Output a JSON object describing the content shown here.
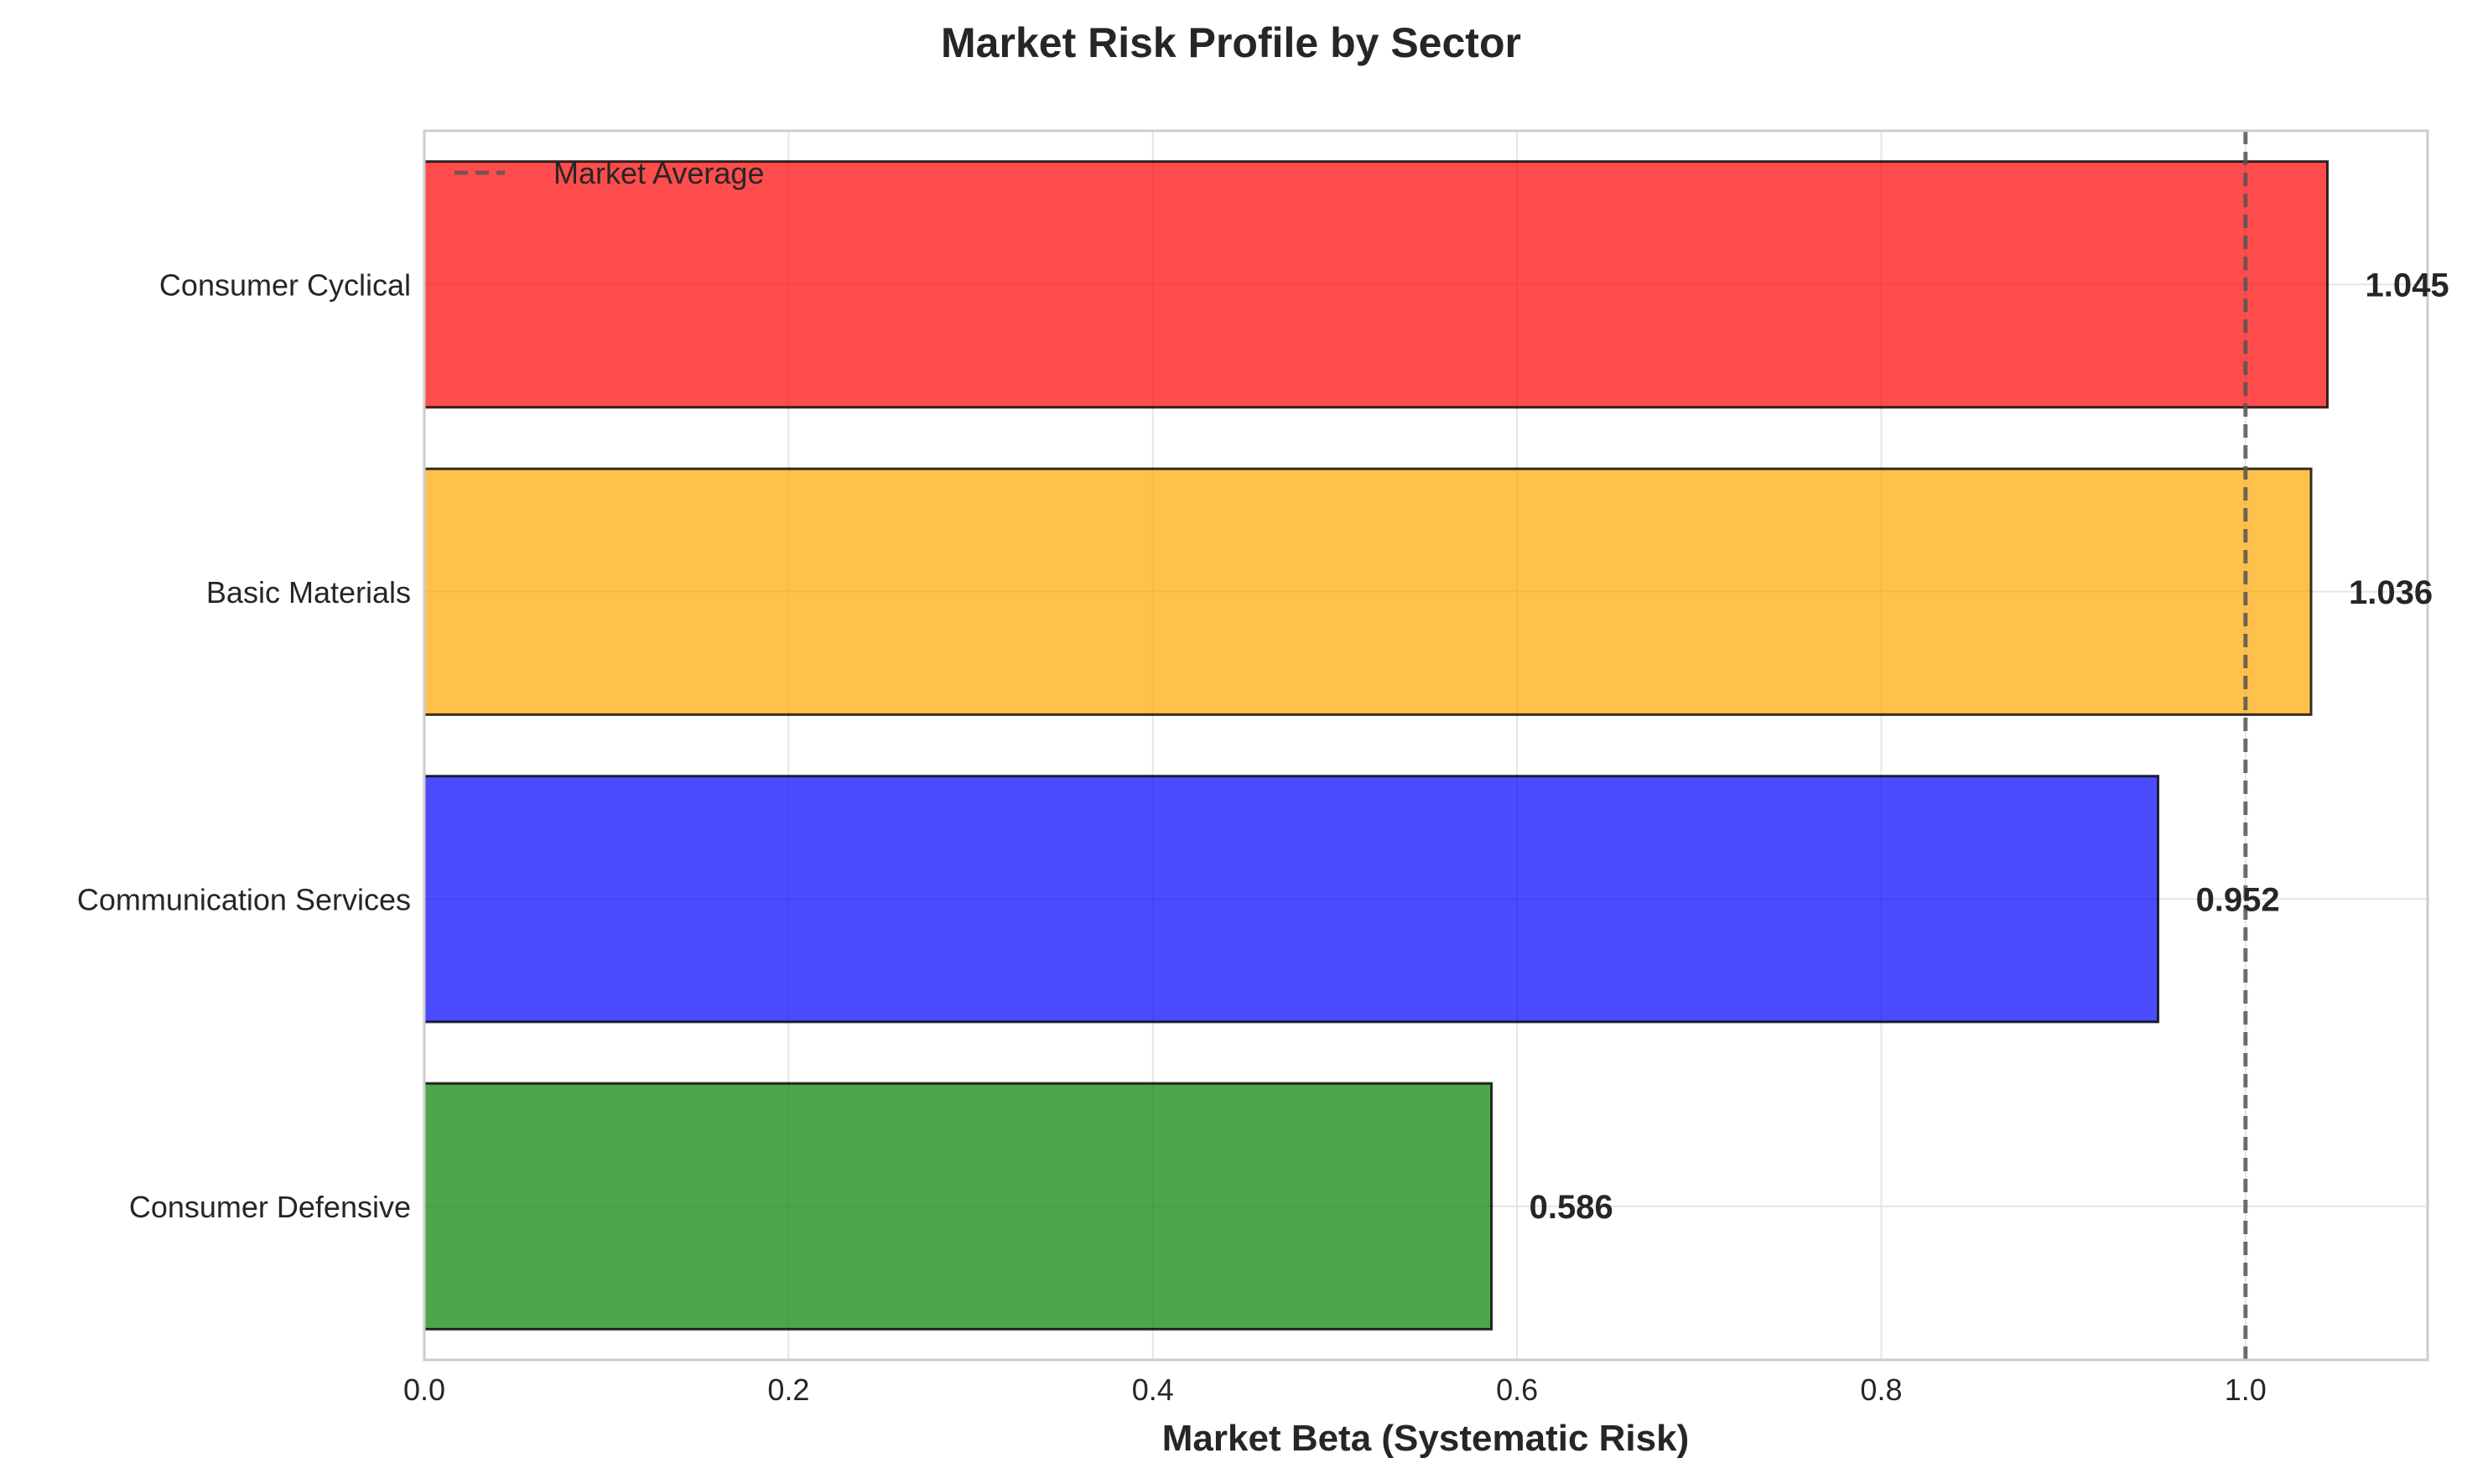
{
  "chart_data": {
    "type": "bar",
    "orientation": "horizontal",
    "title": "Market Risk Profile by Sector",
    "xlabel": "Market Beta (Systematic Risk)",
    "ylabel": "",
    "xlim": [
      0.0,
      1.1
    ],
    "xticks": [
      0.0,
      0.2,
      0.4,
      0.6,
      0.8,
      1.0
    ],
    "xtick_labels": [
      "0.0",
      "0.2",
      "0.4",
      "0.6",
      "0.8",
      "1.0"
    ],
    "grid": true,
    "categories": [
      "Consumer Cyclical",
      "Basic Materials",
      "Communication Services",
      "Consumer Defensive"
    ],
    "values": [
      1.045,
      1.036,
      0.952,
      0.586
    ],
    "value_labels": [
      "1.045",
      "1.036",
      "0.952",
      "0.586"
    ],
    "colors": [
      "#ff0000",
      "#ffa500",
      "#0000ff",
      "#008000"
    ],
    "reference_line": {
      "x": 1.0,
      "style": "dashed",
      "color": "#555555",
      "label": "Market Average"
    },
    "legend": {
      "position": "upper left",
      "entries": [
        "Market Average"
      ]
    }
  }
}
